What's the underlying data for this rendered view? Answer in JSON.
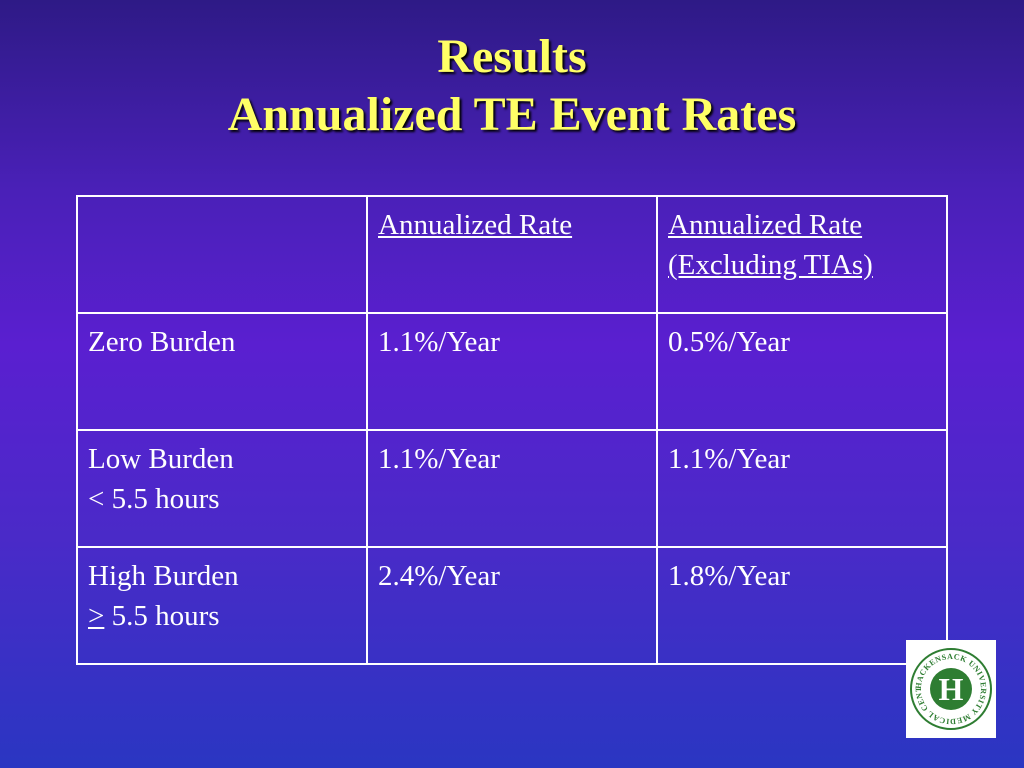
{
  "title": {
    "line1": "Results",
    "line2": "Annualized TE Event Rates"
  },
  "table": {
    "headers": [
      "",
      "Annualized Rate",
      "Annualized Rate",
      "(Excluding TIAs)"
    ],
    "rows": [
      {
        "label": "Zero Burden",
        "sub": "",
        "sub_prefix": "",
        "rate": "1.1%/Year",
        "rate_ex_tia": "0.5%/Year"
      },
      {
        "label": "Low Burden",
        "sub": "< 5.5 hours",
        "sub_prefix": "",
        "rate": "1.1%/Year",
        "rate_ex_tia": "1.1%/Year"
      },
      {
        "label": "High Burden",
        "sub": " 5.5 hours",
        "sub_prefix": ">",
        "rate": "2.4%/Year",
        "rate_ex_tia": "1.8%/Year"
      }
    ]
  },
  "logo": {
    "ring_text": "HACKENSACK UNIVERSITY MEDICAL CENTER",
    "letter": "H",
    "color": "#2e7d32"
  },
  "colors": {
    "title": "#ffff66",
    "text": "#ffffff",
    "background_top": "#2e1a86",
    "background_mid": "#5a1fd0",
    "background_bottom": "#2a36c2"
  }
}
